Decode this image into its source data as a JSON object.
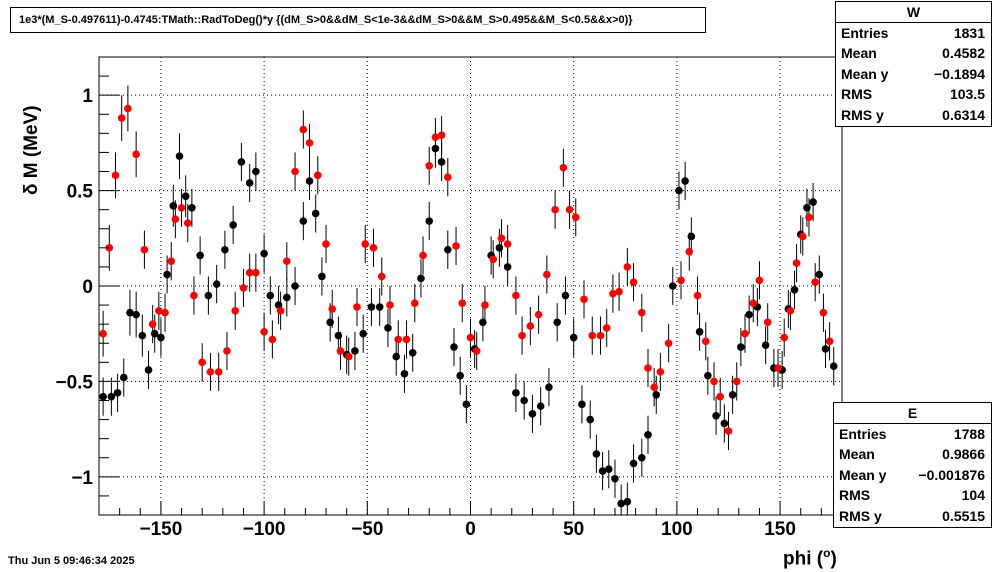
{
  "title": "1e3*(M_S-0.497611)-0.4745:TMath::RadToDeg()*y {(dM_S>0&&dM_S<1e-3&&dM_S>0&&M_S>0.495&&M_S<0.5&&x>0)}",
  "timestamp": "Thu Jun  5 09:46:34 2025",
  "stats_w": {
    "name": "W",
    "rows": [
      {
        "label": "Entries",
        "value": "1831"
      },
      {
        "label": "Mean",
        "value": "0.4582"
      },
      {
        "label": "Mean y",
        "value": "−0.1894"
      },
      {
        "label": "RMS",
        "value": "103.5"
      },
      {
        "label": "RMS y",
        "value": "0.6314"
      }
    ]
  },
  "stats_e": {
    "name": "E",
    "rows": [
      {
        "label": "Entries",
        "value": "1788"
      },
      {
        "label": "Mean",
        "value": "0.9866"
      },
      {
        "label": "Mean y",
        "value": "−0.001876"
      },
      {
        "label": "RMS",
        "value": "104"
      },
      {
        "label": "RMS y",
        "value": "0.5515"
      }
    ]
  },
  "chart_data": {
    "type": "scatter",
    "xlabel": "phi (",
    "xlabel_sup": "o",
    "xlabel_close": ")",
    "ylabel": "δ M (MeV)",
    "xlim": [
      -180,
      180
    ],
    "ylim": [
      -1.2,
      1.2
    ],
    "grid": true,
    "x_ticks": [
      {
        "value": -150,
        "label": "−150"
      },
      {
        "value": -100,
        "label": "−100"
      },
      {
        "value": -50,
        "label": "−50"
      },
      {
        "value": 0,
        "label": "0"
      },
      {
        "value": 50,
        "label": "50"
      },
      {
        "value": 100,
        "label": "100"
      },
      {
        "value": 150,
        "label": "150"
      }
    ],
    "y_ticks": [
      {
        "value": -1,
        "label": "−1"
      },
      {
        "value": -0.5,
        "label": "−0.5"
      },
      {
        "value": 0,
        "label": "0"
      },
      {
        "value": 0.5,
        "label": "0.5"
      },
      {
        "value": 1,
        "label": "1"
      }
    ],
    "series": [
      {
        "name": "W",
        "color": "#000000",
        "points": [
          [
            -178,
            -0.58,
            0.1
          ],
          [
            -174,
            -0.58,
            0.1
          ],
          [
            -171,
            -0.56,
            0.1
          ],
          [
            -168,
            -0.48,
            0.1
          ],
          [
            -165,
            -0.14,
            0.12
          ],
          [
            -162,
            -0.15,
            0.12
          ],
          [
            -159,
            -0.26,
            0.11
          ],
          [
            -156,
            -0.44,
            0.1
          ],
          [
            -153,
            -0.25,
            0.1
          ],
          [
            -150,
            -0.27,
            0.1
          ],
          [
            -147,
            0.06,
            0.1
          ],
          [
            -144,
            0.42,
            0.11
          ],
          [
            -141,
            0.68,
            0.12
          ],
          [
            -138,
            0.47,
            0.11
          ],
          [
            -135,
            0.41,
            0.1
          ],
          [
            -131,
            0.16,
            0.1
          ],
          [
            -127,
            -0.05,
            0.1
          ],
          [
            -123,
            0.01,
            0.1
          ],
          [
            -119,
            0.19,
            0.1
          ],
          [
            -115,
            0.32,
            0.1
          ],
          [
            -111,
            0.65,
            0.1
          ],
          [
            -107,
            0.54,
            0.1
          ],
          [
            -104,
            0.6,
            0.1
          ],
          [
            -100,
            0.17,
            0.1
          ],
          [
            -97,
            -0.05,
            0.1
          ],
          [
            -93,
            -0.1,
            0.1
          ],
          [
            -89,
            -0.06,
            0.1
          ],
          [
            -85,
            0.0,
            0.1
          ],
          [
            -81,
            0.34,
            0.1
          ],
          [
            -78,
            0.55,
            0.1
          ],
          [
            -75,
            0.38,
            0.1
          ],
          [
            -72,
            0.05,
            0.1
          ],
          [
            -68,
            -0.19,
            0.1
          ],
          [
            -64,
            -0.26,
            0.1
          ],
          [
            -60,
            -0.36,
            0.1
          ],
          [
            -56,
            -0.34,
            0.1
          ],
          [
            -52,
            -0.25,
            0.1
          ],
          [
            -48,
            -0.11,
            0.1
          ],
          [
            -44,
            -0.11,
            0.1
          ],
          [
            -40,
            -0.22,
            0.1
          ],
          [
            -36,
            -0.37,
            0.1
          ],
          [
            -32,
            -0.46,
            0.1
          ],
          [
            -28,
            -0.35,
            0.1
          ],
          [
            -24,
            0.04,
            0.1
          ],
          [
            -20,
            0.34,
            0.1
          ],
          [
            -17,
            0.72,
            0.1
          ],
          [
            -14,
            0.65,
            0.1
          ],
          [
            -11,
            0.19,
            0.1
          ],
          [
            -8,
            -0.32,
            0.1
          ],
          [
            -5,
            -0.47,
            0.1
          ],
          [
            -2,
            -0.62,
            0.1
          ],
          [
            2,
            -0.33,
            0.1
          ],
          [
            6,
            -0.19,
            0.1
          ],
          [
            10,
            0.16,
            0.1
          ],
          [
            14,
            0.2,
            0.1
          ],
          [
            18,
            0.1,
            0.1
          ],
          [
            22,
            -0.56,
            0.1
          ],
          [
            26,
            -0.6,
            0.1
          ],
          [
            30,
            -0.67,
            0.1
          ],
          [
            34,
            -0.63,
            0.1
          ],
          [
            38,
            -0.53,
            0.1
          ],
          [
            42,
            -0.19,
            0.1
          ],
          [
            46,
            -0.05,
            0.1
          ],
          [
            50,
            -0.27,
            0.1
          ],
          [
            54,
            -0.62,
            0.1
          ],
          [
            58,
            -0.7,
            0.1
          ],
          [
            61,
            -0.88,
            0.1
          ],
          [
            64,
            -0.97,
            0.1
          ],
          [
            67,
            -0.96,
            0.1
          ],
          [
            70,
            -1.01,
            0.1
          ],
          [
            73,
            -1.14,
            0.1
          ],
          [
            76,
            -1.13,
            0.1
          ],
          [
            79,
            -0.93,
            0.1
          ],
          [
            83,
            -0.9,
            0.1
          ],
          [
            86,
            -0.78,
            0.1
          ],
          [
            90,
            -0.57,
            0.1
          ],
          [
            98,
            0.0,
            0.1
          ],
          [
            101,
            0.5,
            0.1
          ],
          [
            104,
            0.55,
            0.1
          ],
          [
            107,
            0.26,
            0.1
          ],
          [
            111,
            -0.24,
            0.1
          ],
          [
            115,
            -0.47,
            0.1
          ],
          [
            119,
            -0.68,
            0.1
          ],
          [
            123,
            -0.72,
            0.1
          ],
          [
            127,
            -0.57,
            0.1
          ],
          [
            131,
            -0.32,
            0.1
          ],
          [
            135,
            -0.15,
            0.1
          ],
          [
            139,
            -0.11,
            0.1
          ],
          [
            143,
            -0.31,
            0.1
          ],
          [
            147,
            -0.43,
            0.1
          ],
          [
            151,
            -0.44,
            0.1
          ],
          [
            154,
            -0.12,
            0.1
          ],
          [
            157,
            -0.02,
            0.1
          ],
          [
            160,
            0.27,
            0.1
          ],
          [
            163,
            0.41,
            0.1
          ],
          [
            166,
            0.44,
            0.1
          ],
          [
            169,
            0.06,
            0.1
          ],
          [
            172,
            -0.33,
            0.1
          ],
          [
            176,
            -0.42,
            0.1
          ]
        ]
      },
      {
        "name": "E",
        "color": "#ff0000",
        "points": [
          [
            -178,
            -0.25,
            0.12
          ],
          [
            -175,
            0.2,
            0.12
          ],
          [
            -172,
            0.58,
            0.12
          ],
          [
            -169,
            0.88,
            0.12
          ],
          [
            -166,
            0.93,
            0.12
          ],
          [
            -162,
            0.69,
            0.12
          ],
          [
            -158,
            0.19,
            0.1
          ],
          [
            -154,
            -0.2,
            0.1
          ],
          [
            -151,
            -0.13,
            0.1
          ],
          [
            -148,
            -0.14,
            0.1
          ],
          [
            -145,
            0.13,
            0.1
          ],
          [
            -143,
            0.35,
            0.1
          ],
          [
            -140,
            0.41,
            0.1
          ],
          [
            -137,
            0.33,
            0.1
          ],
          [
            -134,
            -0.05,
            0.1
          ],
          [
            -130,
            -0.4,
            0.1
          ],
          [
            -126,
            -0.45,
            0.1
          ],
          [
            -122,
            -0.45,
            0.1
          ],
          [
            -118,
            -0.34,
            0.1
          ],
          [
            -114,
            -0.13,
            0.1
          ],
          [
            -110,
            -0.01,
            0.1
          ],
          [
            -107,
            0.07,
            0.1
          ],
          [
            -104,
            0.07,
            0.1
          ],
          [
            -100,
            -0.24,
            0.1
          ],
          [
            -96,
            -0.28,
            0.1
          ],
          [
            -92,
            -0.13,
            0.1
          ],
          [
            -89,
            0.13,
            0.1
          ],
          [
            -85,
            0.6,
            0.1
          ],
          [
            -81,
            0.82,
            0.1
          ],
          [
            -78,
            0.75,
            0.1
          ],
          [
            -74,
            0.58,
            0.1
          ],
          [
            -70,
            0.22,
            0.1
          ],
          [
            -67,
            -0.12,
            0.1
          ],
          [
            -63,
            -0.34,
            0.1
          ],
          [
            -59,
            -0.37,
            0.1
          ],
          [
            -55,
            -0.11,
            0.1
          ],
          [
            -51,
            0.22,
            0.1
          ],
          [
            -47,
            0.2,
            0.1
          ],
          [
            -43,
            0.05,
            0.1
          ],
          [
            -39,
            -0.1,
            0.1
          ],
          [
            -35,
            -0.28,
            0.1
          ],
          [
            -31,
            -0.28,
            0.1
          ],
          [
            -27,
            -0.09,
            0.1
          ],
          [
            -23,
            0.16,
            0.1
          ],
          [
            -20,
            0.63,
            0.1
          ],
          [
            -17,
            0.78,
            0.1
          ],
          [
            -14,
            0.79,
            0.1
          ],
          [
            -11,
            0.57,
            0.1
          ],
          [
            -7,
            0.21,
            0.1
          ],
          [
            -4,
            -0.09,
            0.1
          ],
          [
            0,
            -0.27,
            0.1
          ],
          [
            3,
            -0.34,
            0.1
          ],
          [
            7,
            -0.1,
            0.1
          ],
          [
            11,
            0.14,
            0.1
          ],
          [
            15,
            0.25,
            0.1
          ],
          [
            18,
            0.22,
            0.1
          ],
          [
            22,
            -0.05,
            0.1
          ],
          [
            25,
            -0.26,
            0.1
          ],
          [
            29,
            -0.21,
            0.1
          ],
          [
            33,
            -0.15,
            0.1
          ],
          [
            37,
            0.06,
            0.1
          ],
          [
            41,
            0.4,
            0.1
          ],
          [
            45,
            0.62,
            0.1
          ],
          [
            48,
            0.4,
            0.1
          ],
          [
            51,
            0.36,
            0.1
          ],
          [
            55,
            -0.07,
            0.1
          ],
          [
            59,
            -0.26,
            0.1
          ],
          [
            63,
            -0.26,
            0.1
          ],
          [
            66,
            -0.22,
            0.1
          ],
          [
            69,
            -0.04,
            0.1
          ],
          [
            72,
            -0.03,
            0.1
          ],
          [
            76,
            0.1,
            0.1
          ],
          [
            79,
            0.02,
            0.1
          ],
          [
            83,
            -0.14,
            0.1
          ],
          [
            86,
            -0.43,
            0.1
          ],
          [
            89,
            -0.53,
            0.1
          ],
          [
            92,
            -0.45,
            0.1
          ],
          [
            96,
            -0.3,
            0.1
          ],
          [
            102,
            0.03,
            0.1
          ],
          [
            106,
            0.18,
            0.1
          ],
          [
            110,
            -0.05,
            0.1
          ],
          [
            114,
            -0.29,
            0.1
          ],
          [
            118,
            -0.5,
            0.1
          ],
          [
            121,
            -0.58,
            0.1
          ],
          [
            125,
            -0.76,
            0.1
          ],
          [
            129,
            -0.5,
            0.1
          ],
          [
            133,
            -0.25,
            0.1
          ],
          [
            137,
            -0.09,
            0.1
          ],
          [
            140,
            0.03,
            0.1
          ],
          [
            144,
            -0.19,
            0.1
          ],
          [
            149,
            -0.43,
            0.1
          ],
          [
            152,
            -0.27,
            0.1
          ],
          [
            155,
            -0.13,
            0.1
          ],
          [
            158,
            0.12,
            0.1
          ],
          [
            161,
            0.26,
            0.1
          ],
          [
            164,
            0.36,
            0.1
          ],
          [
            167,
            0.02,
            0.1
          ],
          [
            171,
            -0.14,
            0.1
          ],
          [
            174,
            -0.29,
            0.1
          ]
        ]
      }
    ]
  }
}
